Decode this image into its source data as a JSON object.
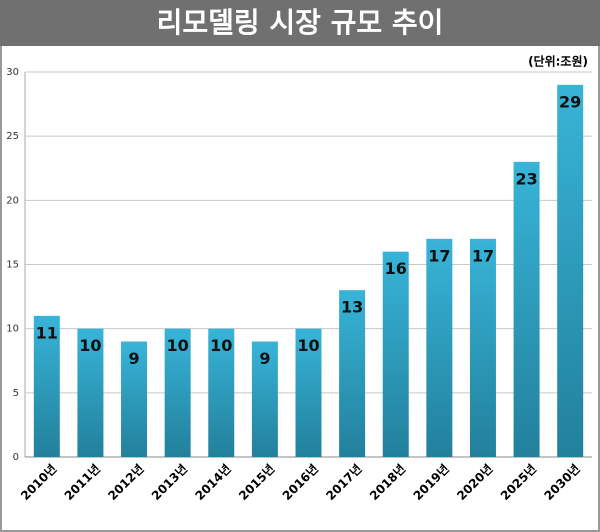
{
  "chart_data": {
    "type": "bar",
    "title": "리모델링 시장 규모 추이",
    "unit_label": "(단위:조원)",
    "categories": [
      "2010년",
      "2011년",
      "2012년",
      "2013년",
      "2014년",
      "2015년",
      "2016년",
      "2017년",
      "2018년",
      "2019년",
      "2020년",
      "2025년",
      "2030년"
    ],
    "values": [
      11,
      10,
      9,
      10,
      10,
      9,
      10,
      13,
      16,
      17,
      17,
      23,
      29
    ],
    "color": "#2fa6c8",
    "ylim": [
      0,
      30
    ],
    "yticks": [
      0,
      5,
      10,
      15,
      20,
      25,
      30
    ],
    "grid": true
  }
}
